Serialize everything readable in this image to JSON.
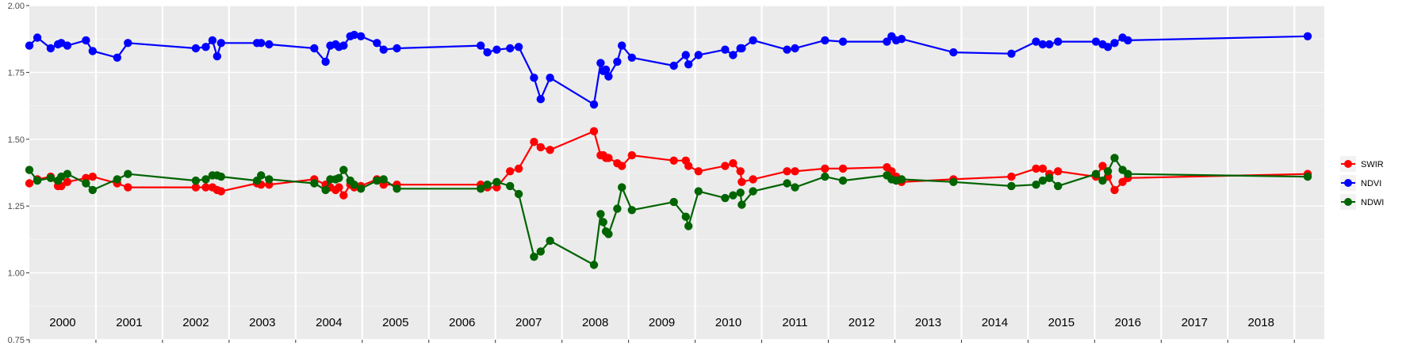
{
  "chart_data": {
    "type": "line",
    "title": "",
    "xlabel": "",
    "ylabel": "",
    "ylim": [
      0.75,
      2.0
    ],
    "y_ticks": [
      "0.75",
      "1.00",
      "1.25",
      "1.50",
      "1.75",
      "2.00"
    ],
    "y_tick_values": [
      0.75,
      1.0,
      1.25,
      1.5,
      1.75,
      2.0
    ],
    "xlim": [
      1999.5,
      2018.95
    ],
    "year_labels": [
      "2000",
      "2001",
      "2002",
      "2003",
      "2004",
      "2005",
      "2006",
      "2007",
      "2008",
      "2009",
      "2010",
      "2011",
      "2012",
      "2013",
      "2014",
      "2015",
      "2016",
      "2017",
      "2018"
    ],
    "grid": true,
    "legend_position": "right",
    "series": [
      {
        "name": "SWIR",
        "color": "#ff0000",
        "points": [
          [
            1999.5,
            1.335
          ],
          [
            1999.62,
            1.35
          ],
          [
            1999.82,
            1.36
          ],
          [
            1999.93,
            1.325
          ],
          [
            1999.98,
            1.325
          ],
          [
            2000.07,
            1.34
          ],
          [
            2000.35,
            1.355
          ],
          [
            2000.45,
            1.36
          ],
          [
            2000.82,
            1.335
          ],
          [
            2000.98,
            1.32
          ],
          [
            2002.0,
            1.32
          ],
          [
            2002.15,
            1.32
          ],
          [
            2002.25,
            1.32
          ],
          [
            2002.32,
            1.31
          ],
          [
            2002.38,
            1.305
          ],
          [
            2002.92,
            1.335
          ],
          [
            2002.98,
            1.33
          ],
          [
            2003.1,
            1.33
          ],
          [
            2003.78,
            1.35
          ],
          [
            2003.95,
            1.33
          ],
          [
            2004.02,
            1.32
          ],
          [
            2004.1,
            1.31
          ],
          [
            2004.15,
            1.32
          ],
          [
            2004.22,
            1.29
          ],
          [
            2004.32,
            1.33
          ],
          [
            2004.38,
            1.32
          ],
          [
            2004.48,
            1.325
          ],
          [
            2004.72,
            1.35
          ],
          [
            2004.82,
            1.33
          ],
          [
            2005.02,
            1.33
          ],
          [
            2006.28,
            1.33
          ],
          [
            2006.38,
            1.32
          ],
          [
            2006.52,
            1.32
          ],
          [
            2006.72,
            1.38
          ],
          [
            2006.85,
            1.39
          ],
          [
            2007.08,
            1.49
          ],
          [
            2007.18,
            1.47
          ],
          [
            2007.32,
            1.46
          ],
          [
            2007.98,
            1.53
          ],
          [
            2008.08,
            1.44
          ],
          [
            2008.12,
            1.44
          ],
          [
            2008.16,
            1.43
          ],
          [
            2008.2,
            1.43
          ],
          [
            2008.33,
            1.41
          ],
          [
            2008.4,
            1.4
          ],
          [
            2008.55,
            1.44
          ],
          [
            2009.18,
            1.42
          ],
          [
            2009.36,
            1.42
          ],
          [
            2009.4,
            1.4
          ],
          [
            2009.55,
            1.38
          ],
          [
            2009.95,
            1.4
          ],
          [
            2010.07,
            1.41
          ],
          [
            2010.18,
            1.38
          ],
          [
            2010.2,
            1.34
          ],
          [
            2010.37,
            1.35
          ],
          [
            2010.88,
            1.38
          ],
          [
            2011.0,
            1.38
          ],
          [
            2011.45,
            1.39
          ],
          [
            2011.72,
            1.39
          ],
          [
            2012.38,
            1.395
          ],
          [
            2012.45,
            1.38
          ],
          [
            2012.52,
            1.36
          ],
          [
            2012.6,
            1.34
          ],
          [
            2013.38,
            1.35
          ],
          [
            2014.25,
            1.36
          ],
          [
            2014.62,
            1.39
          ],
          [
            2014.72,
            1.39
          ],
          [
            2014.82,
            1.37
          ],
          [
            2014.95,
            1.38
          ],
          [
            2015.52,
            1.36
          ],
          [
            2015.62,
            1.4
          ],
          [
            2015.7,
            1.36
          ],
          [
            2015.8,
            1.31
          ],
          [
            2015.92,
            1.34
          ],
          [
            2016.0,
            1.355
          ],
          [
            2018.7,
            1.37
          ]
        ]
      },
      {
        "name": "NDVI",
        "color": "#0000ff",
        "points": [
          [
            1999.5,
            1.85
          ],
          [
            1999.62,
            1.88
          ],
          [
            1999.82,
            1.84
          ],
          [
            1999.93,
            1.855
          ],
          [
            1999.98,
            1.86
          ],
          [
            2000.07,
            1.85
          ],
          [
            2000.35,
            1.87
          ],
          [
            2000.45,
            1.83
          ],
          [
            2000.82,
            1.805
          ],
          [
            2000.98,
            1.86
          ],
          [
            2002.0,
            1.84
          ],
          [
            2002.15,
            1.845
          ],
          [
            2002.25,
            1.87
          ],
          [
            2002.32,
            1.81
          ],
          [
            2002.38,
            1.86
          ],
          [
            2002.92,
            1.86
          ],
          [
            2002.98,
            1.86
          ],
          [
            2003.1,
            1.855
          ],
          [
            2003.78,
            1.84
          ],
          [
            2003.95,
            1.79
          ],
          [
            2004.02,
            1.85
          ],
          [
            2004.1,
            1.855
          ],
          [
            2004.15,
            1.845
          ],
          [
            2004.22,
            1.85
          ],
          [
            2004.32,
            1.885
          ],
          [
            2004.38,
            1.89
          ],
          [
            2004.48,
            1.885
          ],
          [
            2004.72,
            1.86
          ],
          [
            2004.82,
            1.835
          ],
          [
            2005.02,
            1.84
          ],
          [
            2006.28,
            1.85
          ],
          [
            2006.38,
            1.825
          ],
          [
            2006.52,
            1.835
          ],
          [
            2006.72,
            1.84
          ],
          [
            2006.85,
            1.845
          ],
          [
            2007.08,
            1.73
          ],
          [
            2007.18,
            1.65
          ],
          [
            2007.32,
            1.73
          ],
          [
            2007.98,
            1.63
          ],
          [
            2008.08,
            1.785
          ],
          [
            2008.12,
            1.755
          ],
          [
            2008.16,
            1.76
          ],
          [
            2008.2,
            1.735
          ],
          [
            2008.33,
            1.79
          ],
          [
            2008.4,
            1.85
          ],
          [
            2008.55,
            1.805
          ],
          [
            2009.18,
            1.775
          ],
          [
            2009.36,
            1.815
          ],
          [
            2009.4,
            1.78
          ],
          [
            2009.55,
            1.815
          ],
          [
            2009.95,
            1.835
          ],
          [
            2010.07,
            1.815
          ],
          [
            2010.18,
            1.84
          ],
          [
            2010.2,
            1.84
          ],
          [
            2010.37,
            1.87
          ],
          [
            2010.88,
            1.835
          ],
          [
            2011.0,
            1.84
          ],
          [
            2011.45,
            1.87
          ],
          [
            2011.72,
            1.865
          ],
          [
            2012.38,
            1.865
          ],
          [
            2012.45,
            1.885
          ],
          [
            2012.52,
            1.87
          ],
          [
            2012.6,
            1.875
          ],
          [
            2013.38,
            1.825
          ],
          [
            2014.25,
            1.82
          ],
          [
            2014.62,
            1.865
          ],
          [
            2014.72,
            1.855
          ],
          [
            2014.82,
            1.855
          ],
          [
            2014.95,
            1.865
          ],
          [
            2015.52,
            1.865
          ],
          [
            2015.62,
            1.855
          ],
          [
            2015.7,
            1.845
          ],
          [
            2015.8,
            1.86
          ],
          [
            2015.92,
            1.88
          ],
          [
            2016.0,
            1.87
          ],
          [
            2018.7,
            1.885
          ]
        ]
      },
      {
        "name": "NDWI",
        "color": "#006400",
        "points": [
          [
            1999.5,
            1.385
          ],
          [
            1999.62,
            1.345
          ],
          [
            1999.82,
            1.355
          ],
          [
            1999.93,
            1.345
          ],
          [
            1999.98,
            1.36
          ],
          [
            2000.07,
            1.37
          ],
          [
            2000.35,
            1.335
          ],
          [
            2000.45,
            1.31
          ],
          [
            2000.82,
            1.35
          ],
          [
            2000.98,
            1.37
          ],
          [
            2002.0,
            1.345
          ],
          [
            2002.15,
            1.35
          ],
          [
            2002.25,
            1.365
          ],
          [
            2002.32,
            1.365
          ],
          [
            2002.38,
            1.36
          ],
          [
            2002.92,
            1.345
          ],
          [
            2002.98,
            1.365
          ],
          [
            2003.1,
            1.35
          ],
          [
            2003.78,
            1.335
          ],
          [
            2003.95,
            1.31
          ],
          [
            2004.02,
            1.35
          ],
          [
            2004.1,
            1.35
          ],
          [
            2004.15,
            1.355
          ],
          [
            2004.22,
            1.385
          ],
          [
            2004.32,
            1.345
          ],
          [
            2004.38,
            1.33
          ],
          [
            2004.48,
            1.315
          ],
          [
            2004.72,
            1.345
          ],
          [
            2004.82,
            1.35
          ],
          [
            2005.02,
            1.315
          ],
          [
            2006.28,
            1.315
          ],
          [
            2006.38,
            1.33
          ],
          [
            2006.52,
            1.34
          ],
          [
            2006.72,
            1.325
          ],
          [
            2006.85,
            1.295
          ],
          [
            2007.08,
            1.06
          ],
          [
            2007.18,
            1.08
          ],
          [
            2007.32,
            1.12
          ],
          [
            2007.98,
            1.03
          ],
          [
            2008.08,
            1.22
          ],
          [
            2008.12,
            1.19
          ],
          [
            2008.16,
            1.155
          ],
          [
            2008.2,
            1.145
          ],
          [
            2008.33,
            1.24
          ],
          [
            2008.4,
            1.32
          ],
          [
            2008.55,
            1.235
          ],
          [
            2009.18,
            1.265
          ],
          [
            2009.36,
            1.21
          ],
          [
            2009.4,
            1.175
          ],
          [
            2009.55,
            1.305
          ],
          [
            2009.95,
            1.28
          ],
          [
            2010.07,
            1.29
          ],
          [
            2010.18,
            1.3
          ],
          [
            2010.2,
            1.255
          ],
          [
            2010.37,
            1.305
          ],
          [
            2010.88,
            1.335
          ],
          [
            2011.0,
            1.32
          ],
          [
            2011.45,
            1.36
          ],
          [
            2011.72,
            1.345
          ],
          [
            2012.38,
            1.365
          ],
          [
            2012.45,
            1.35
          ],
          [
            2012.52,
            1.345
          ],
          [
            2012.6,
            1.35
          ],
          [
            2013.38,
            1.34
          ],
          [
            2014.25,
            1.325
          ],
          [
            2014.62,
            1.33
          ],
          [
            2014.72,
            1.345
          ],
          [
            2014.82,
            1.355
          ],
          [
            2014.95,
            1.325
          ],
          [
            2015.52,
            1.37
          ],
          [
            2015.62,
            1.345
          ],
          [
            2015.7,
            1.38
          ],
          [
            2015.8,
            1.43
          ],
          [
            2015.92,
            1.385
          ],
          [
            2016.0,
            1.37
          ],
          [
            2018.7,
            1.36
          ]
        ]
      }
    ]
  }
}
